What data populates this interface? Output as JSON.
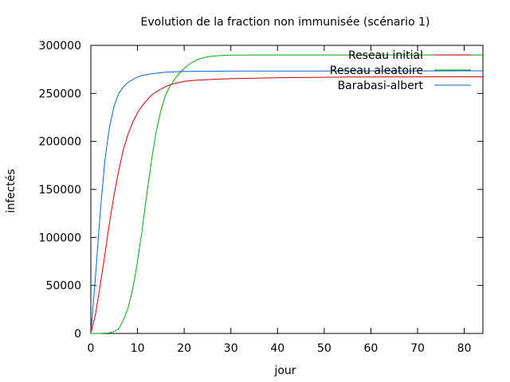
{
  "chart_data": {
    "type": "line",
    "title": "Evolution de la fraction non immunisée (scénario 1)",
    "xlabel": "jour",
    "ylabel": "infectés",
    "xlim": [
      0,
      84
    ],
    "ylim": [
      0,
      300000
    ],
    "xticks": [
      0,
      10,
      20,
      30,
      40,
      50,
      60,
      70,
      80
    ],
    "yticks": [
      0,
      50000,
      100000,
      150000,
      200000,
      250000,
      300000
    ],
    "grid": false,
    "legend_position": "top-right",
    "series": [
      {
        "name": "Reseau initial",
        "color": "#cc0000",
        "x": [
          0,
          1,
          2,
          3,
          4,
          5,
          6,
          7,
          8,
          9,
          10,
          11,
          12,
          13,
          14,
          15,
          16,
          17,
          18,
          19,
          20,
          22,
          24,
          26,
          28,
          30,
          35,
          40,
          45,
          50,
          55,
          60,
          65,
          70,
          75,
          80,
          84
        ],
        "y": [
          0,
          20000,
          50000,
          82000,
          115000,
          145000,
          170000,
          192000,
          208000,
          220000,
          230000,
          237000,
          243000,
          248000,
          251500,
          254500,
          257000,
          259000,
          260500,
          261500,
          262500,
          263500,
          264000,
          264500,
          265000,
          265300,
          265800,
          266200,
          266500,
          266800,
          267000,
          267100,
          267200,
          267200,
          267300,
          267300,
          267300
        ]
      },
      {
        "name": "Reseau aleatoire",
        "color": "#00aa00",
        "x": [
          0,
          2,
          4,
          5,
          6,
          7,
          8,
          9,
          10,
          11,
          12,
          13,
          14,
          15,
          16,
          17,
          18,
          19,
          20,
          21,
          22,
          23,
          24,
          25,
          26,
          28,
          30,
          35,
          40,
          45,
          50,
          60,
          70,
          80,
          84
        ],
        "y": [
          0,
          0,
          500,
          2000,
          5000,
          14000,
          27000,
          47000,
          75000,
          108000,
          145000,
          180000,
          210000,
          232000,
          248000,
          258000,
          265000,
          271000,
          276000,
          280000,
          283000,
          285500,
          287000,
          288000,
          288800,
          289500,
          289800,
          290000,
          290000,
          290000,
          290000,
          290000,
          290000,
          290000,
          290000
        ]
      },
      {
        "name": "Barabasi-albert",
        "color": "#0066cc",
        "x": [
          0,
          1,
          2,
          3,
          4,
          5,
          6,
          7,
          8,
          9,
          10,
          11,
          12,
          13,
          14,
          15,
          16,
          18,
          20,
          25,
          30,
          40,
          50,
          60,
          70,
          80,
          84
        ],
        "y": [
          0,
          60000,
          125000,
          180000,
          215000,
          237000,
          250000,
          257000,
          261500,
          264500,
          267000,
          268500,
          269500,
          270500,
          271000,
          271500,
          272000,
          272500,
          272800,
          273000,
          273200,
          273300,
          273300,
          273400,
          273400,
          273500,
          273500
        ]
      }
    ]
  }
}
